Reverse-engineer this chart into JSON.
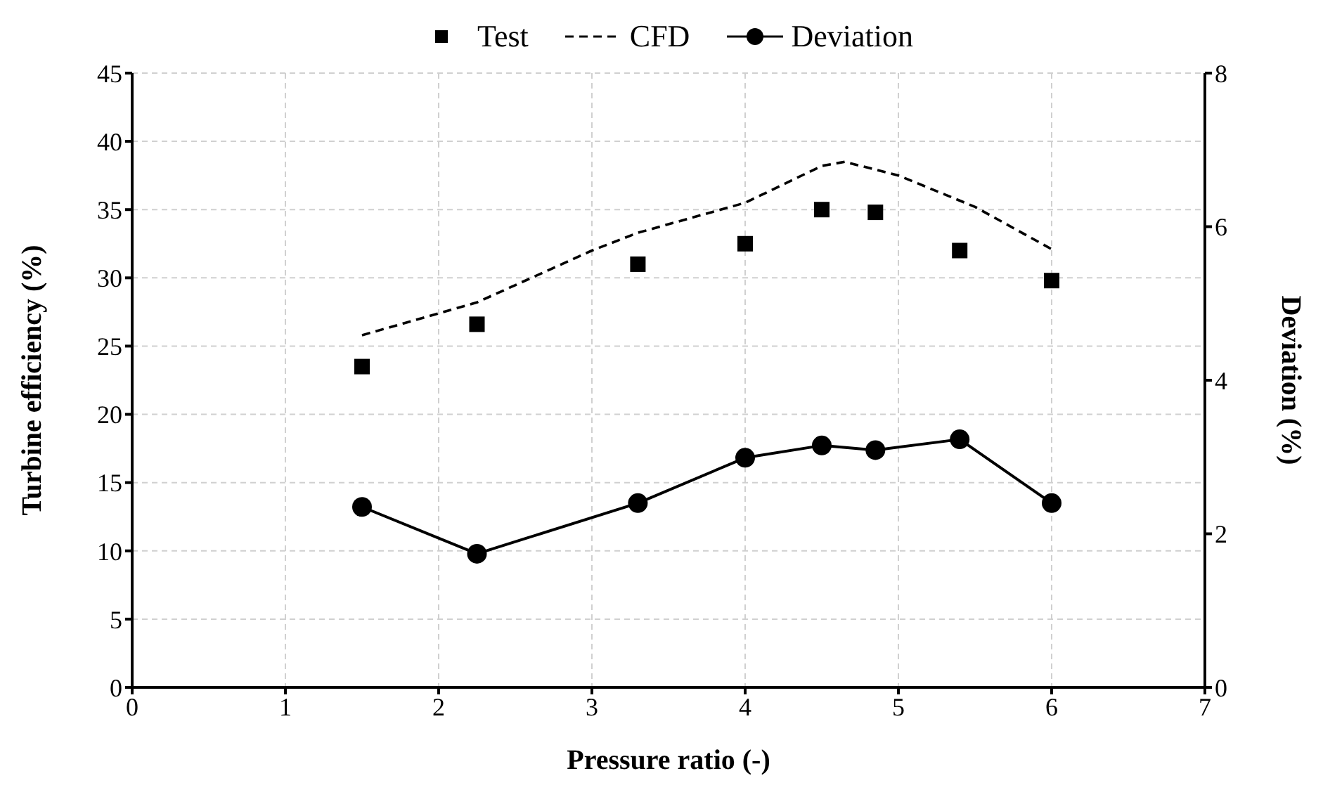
{
  "chart_data": {
    "type": "line",
    "xlabel": "Pressure ratio (-)",
    "ylabel": "Turbine efficiency (%)",
    "y2label": "Deviation (%)",
    "xlim": [
      0,
      7
    ],
    "xticks": [
      0,
      1,
      2,
      3,
      4,
      5,
      6,
      7
    ],
    "ylim": [
      0,
      45
    ],
    "yticks": [
      0,
      5,
      10,
      15,
      20,
      25,
      30,
      35,
      40,
      45
    ],
    "y2lim": [
      0,
      8
    ],
    "y2ticks": [
      0,
      2,
      4,
      6,
      8
    ],
    "grid": true,
    "legend": "top",
    "series": [
      {
        "name": "Test",
        "type": "scatter",
        "marker": "square",
        "color": "#000000",
        "x": [
          1.5,
          2.25,
          3.3,
          4,
          4.5,
          4.85,
          5.4,
          6
        ],
        "values": [
          23.5,
          26.6,
          31,
          32.5,
          35,
          34.8,
          32,
          29.8
        ]
      },
      {
        "name": "CFD",
        "marker": "none",
        "line_style": "dashed",
        "color": "#000000",
        "x": [
          1.5,
          2,
          2.25,
          3,
          3.3,
          4,
          4.5,
          4.65,
          5,
          5.5,
          6
        ],
        "values": [
          25.8,
          27.4,
          28.2,
          32,
          33.3,
          35.5,
          38.2,
          38.5,
          37.5,
          35.2,
          32.1
        ]
      },
      {
        "name": "Deviation",
        "marker": "circle",
        "line_style": "solid",
        "axis": "y2",
        "color": "#000000",
        "x": [
          1.5,
          2.25,
          3.3,
          4,
          4.5,
          4.85,
          5.4,
          6
        ],
        "values": [
          2.35,
          1.74,
          2.4,
          2.99,
          3.15,
          3.09,
          3.23,
          2.4
        ]
      }
    ]
  }
}
